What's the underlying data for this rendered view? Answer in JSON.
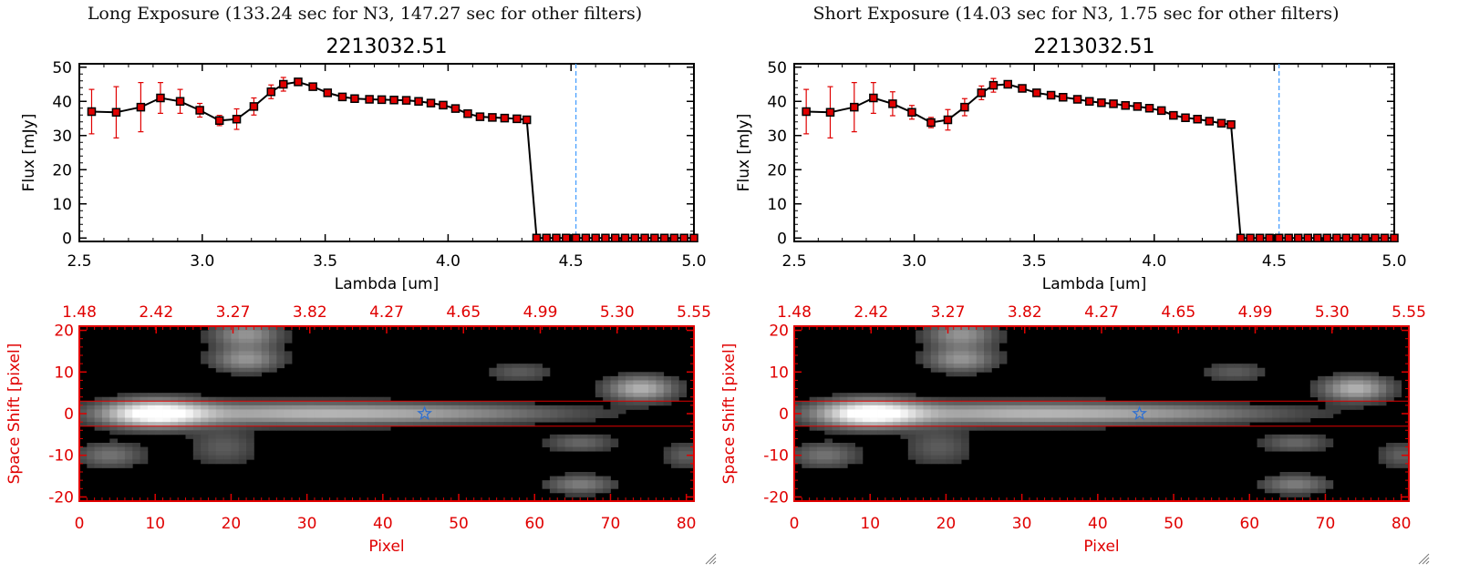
{
  "panels": [
    {
      "header": "Long Exposure (133.24 sec for N3, 147.27 sec for other filters)",
      "spectrum": {
        "title": "2213032.51",
        "xlabel": "Lambda [um]",
        "ylabel": "Flux [mJy]",
        "xticks": [
          "2.5",
          "3.0",
          "3.5",
          "4.0",
          "4.5",
          "5.0"
        ],
        "yticks": [
          "0",
          "10",
          "20",
          "30",
          "40",
          "50"
        ]
      },
      "image": {
        "xlabel": "Pixel",
        "ylabel": "Space Shift [pixel]",
        "xticks": [
          "0",
          "10",
          "20",
          "30",
          "40",
          "50",
          "60",
          "70",
          "80"
        ],
        "yticks": [
          "20",
          "10",
          "0",
          "-10",
          "-20"
        ],
        "top_ticks": [
          "1.48",
          "2.42",
          "3.27",
          "3.82",
          "4.27",
          "4.65",
          "4.99",
          "5.30",
          "5.55"
        ]
      }
    },
    {
      "header": "Short Exposure (14.03 sec for N3, 1.75 sec for other filters)",
      "spectrum": {
        "title": "2213032.51",
        "xlabel": "Lambda [um]",
        "ylabel": "Flux [mJy]",
        "xticks": [
          "2.5",
          "3.0",
          "3.5",
          "4.0",
          "4.5",
          "5.0"
        ],
        "yticks": [
          "0",
          "10",
          "20",
          "30",
          "40",
          "50"
        ]
      },
      "image": {
        "xlabel": "Pixel",
        "ylabel": "Space Shift [pixel]",
        "xticks": [
          "0",
          "10",
          "20",
          "30",
          "40",
          "50",
          "60",
          "70",
          "80"
        ],
        "yticks": [
          "20",
          "10",
          "0",
          "-10",
          "-20"
        ],
        "top_ticks": [
          "1.48",
          "2.42",
          "3.27",
          "3.82",
          "4.27",
          "4.65",
          "4.99",
          "5.30",
          "5.55"
        ]
      }
    }
  ],
  "colors": {
    "axis": "#000000",
    "spectrum_line": "#000000",
    "marker_fill": "#e00000",
    "error_bar": "#e00000",
    "cutoff_line": "#4aa0ff",
    "image_axes": "#e00000",
    "aperture_lines": "#e00000",
    "source_marker": "#3070d0"
  },
  "chart_data": [
    {
      "type": "line",
      "title": "2213032.51",
      "xlabel": "Lambda [um]",
      "ylabel": "Flux [mJy]",
      "xlim": [
        2.5,
        5.0
      ],
      "ylim": [
        -1,
        51
      ],
      "cutoff_x": 4.52,
      "series": [
        {
          "x": [
            2.55,
            2.65,
            2.75,
            2.83,
            2.91,
            2.99,
            3.07,
            3.14,
            3.21,
            3.28,
            3.33,
            3.39,
            3.45,
            3.51,
            3.57,
            3.62,
            3.68,
            3.73,
            3.78,
            3.83,
            3.88,
            3.93,
            3.98,
            4.03,
            4.08,
            4.13,
            4.18,
            4.23,
            4.28,
            4.32,
            4.36,
            4.4,
            4.44,
            4.48,
            4.52,
            4.56,
            4.6,
            4.64,
            4.68,
            4.72,
            4.76,
            4.8,
            4.84,
            4.88,
            4.92,
            4.96,
            5.0
          ],
          "y": [
            37.0,
            36.8,
            38.3,
            41.0,
            40.0,
            37.4,
            34.4,
            34.8,
            38.5,
            42.8,
            45.0,
            45.7,
            44.3,
            42.5,
            41.3,
            40.8,
            40.6,
            40.5,
            40.4,
            40.3,
            40.0,
            39.5,
            38.9,
            37.9,
            36.4,
            35.5,
            35.3,
            35.1,
            34.9,
            34.6,
            0,
            0,
            0,
            0,
            0,
            0,
            0,
            0,
            0,
            0,
            0,
            0,
            0,
            0,
            0,
            0,
            0
          ],
          "err": [
            6.5,
            7.5,
            7.2,
            4.5,
            3.5,
            2.0,
            1.5,
            3.0,
            2.5,
            2.0,
            2.0,
            1.0,
            0.7,
            0.6,
            0.6,
            0.5,
            0.5,
            0.5,
            0.5,
            0.5,
            0.5,
            0.5,
            0.5,
            0.5,
            0.5,
            0.5,
            0.5,
            0.5,
            0.5,
            0.5,
            0,
            0,
            0,
            0,
            0,
            0,
            0,
            0,
            0,
            0,
            0,
            0,
            0,
            0,
            0,
            0,
            0
          ]
        }
      ]
    },
    {
      "type": "line",
      "title": "2213032.51",
      "xlabel": "Lambda [um]",
      "ylabel": "Flux [mJy]",
      "xlim": [
        2.5,
        5.0
      ],
      "ylim": [
        -1,
        51
      ],
      "cutoff_x": 4.52,
      "series": [
        {
          "x": [
            2.55,
            2.65,
            2.75,
            2.83,
            2.91,
            2.99,
            3.07,
            3.14,
            3.21,
            3.28,
            3.33,
            3.39,
            3.45,
            3.51,
            3.57,
            3.62,
            3.68,
            3.73,
            3.78,
            3.83,
            3.88,
            3.93,
            3.98,
            4.03,
            4.08,
            4.13,
            4.18,
            4.23,
            4.28,
            4.32,
            4.36,
            4.4,
            4.44,
            4.48,
            4.52,
            4.56,
            4.6,
            4.64,
            4.68,
            4.72,
            4.76,
            4.8,
            4.84,
            4.88,
            4.92,
            4.96,
            5.0
          ],
          "y": [
            37.0,
            36.8,
            38.3,
            41.0,
            39.3,
            36.8,
            33.8,
            34.6,
            38.3,
            42.5,
            44.7,
            45.0,
            43.8,
            42.5,
            41.8,
            41.2,
            40.6,
            40.0,
            39.6,
            39.3,
            38.8,
            38.5,
            38.0,
            37.3,
            35.9,
            35.2,
            34.8,
            34.2,
            33.6,
            33.2,
            0,
            0,
            0,
            0,
            0,
            0,
            0,
            0,
            0,
            0,
            0,
            0,
            0,
            0,
            0,
            0,
            0
          ],
          "err": [
            6.5,
            7.5,
            7.2,
            4.5,
            3.5,
            2.0,
            1.5,
            3.0,
            2.5,
            2.0,
            2.0,
            1.0,
            0.7,
            0.6,
            0.6,
            0.5,
            0.5,
            0.5,
            0.5,
            0.5,
            0.5,
            0.5,
            0.5,
            0.5,
            0.5,
            0.5,
            0.5,
            0.5,
            0.5,
            0.5,
            0,
            0,
            0,
            0,
            0,
            0,
            0,
            0,
            0,
            0,
            0,
            0,
            0,
            0,
            0,
            0,
            0
          ]
        }
      ]
    },
    {
      "type": "heatmap",
      "xlabel": "Pixel",
      "ylabel": "Space Shift [pixel]",
      "xlim": [
        0,
        81
      ],
      "ylim": [
        -21,
        21
      ],
      "aperture_y": [
        3,
        -3
      ],
      "source_marker": [
        45.5,
        0
      ],
      "blobs": [
        {
          "x": 10,
          "y": 0,
          "sx": 4.5,
          "sy": 2.2,
          "v": 1.0
        },
        {
          "x": 28,
          "y": 0,
          "sx": 14,
          "sy": 1.8,
          "v": 0.55
        },
        {
          "x": 50,
          "y": 0,
          "sx": 12,
          "sy": 1.5,
          "v": 0.3
        },
        {
          "x": 22,
          "y": 19,
          "sx": 3,
          "sy": 2.2,
          "v": 0.45
        },
        {
          "x": 22,
          "y": 13,
          "sx": 3,
          "sy": 2,
          "v": 0.45
        },
        {
          "x": 74,
          "y": 6,
          "sx": 3,
          "sy": 2,
          "v": 0.6
        },
        {
          "x": 4,
          "y": -10,
          "sx": 3,
          "sy": 2,
          "v": 0.3
        },
        {
          "x": 66,
          "y": -7,
          "sx": 3,
          "sy": 1.5,
          "v": 0.25
        },
        {
          "x": 66,
          "y": -17,
          "sx": 3,
          "sy": 1.5,
          "v": 0.35
        },
        {
          "x": 19,
          "y": -8,
          "sx": 3,
          "sy": 3,
          "v": 0.2
        },
        {
          "x": 58,
          "y": 10,
          "sx": 3,
          "sy": 1.5,
          "v": 0.2
        },
        {
          "x": 80,
          "y": -10,
          "sx": 2,
          "sy": 2,
          "v": 0.22
        }
      ]
    },
    {
      "type": "heatmap",
      "xlabel": "Pixel",
      "ylabel": "Space Shift [pixel]",
      "xlim": [
        0,
        81
      ],
      "ylim": [
        -21,
        21
      ],
      "aperture_y": [
        3,
        -3
      ],
      "source_marker": [
        45.5,
        0
      ],
      "blobs": [
        {
          "x": 10,
          "y": 0,
          "sx": 4.5,
          "sy": 2.2,
          "v": 1.0
        },
        {
          "x": 28,
          "y": 0,
          "sx": 14,
          "sy": 1.8,
          "v": 0.55
        },
        {
          "x": 50,
          "y": 0,
          "sx": 12,
          "sy": 1.5,
          "v": 0.3
        },
        {
          "x": 22,
          "y": 19,
          "sx": 3,
          "sy": 2.2,
          "v": 0.45
        },
        {
          "x": 22,
          "y": 13,
          "sx": 3,
          "sy": 2,
          "v": 0.45
        },
        {
          "x": 74,
          "y": 6,
          "sx": 3,
          "sy": 2,
          "v": 0.6
        },
        {
          "x": 4,
          "y": -10,
          "sx": 3,
          "sy": 2,
          "v": 0.3
        },
        {
          "x": 66,
          "y": -7,
          "sx": 3,
          "sy": 1.5,
          "v": 0.25
        },
        {
          "x": 66,
          "y": -17,
          "sx": 3,
          "sy": 1.5,
          "v": 0.35
        },
        {
          "x": 19,
          "y": -8,
          "sx": 3,
          "sy": 3,
          "v": 0.2
        },
        {
          "x": 58,
          "y": 10,
          "sx": 3,
          "sy": 1.5,
          "v": 0.2
        },
        {
          "x": 80,
          "y": -10,
          "sx": 2,
          "sy": 2,
          "v": 0.22
        }
      ]
    }
  ]
}
